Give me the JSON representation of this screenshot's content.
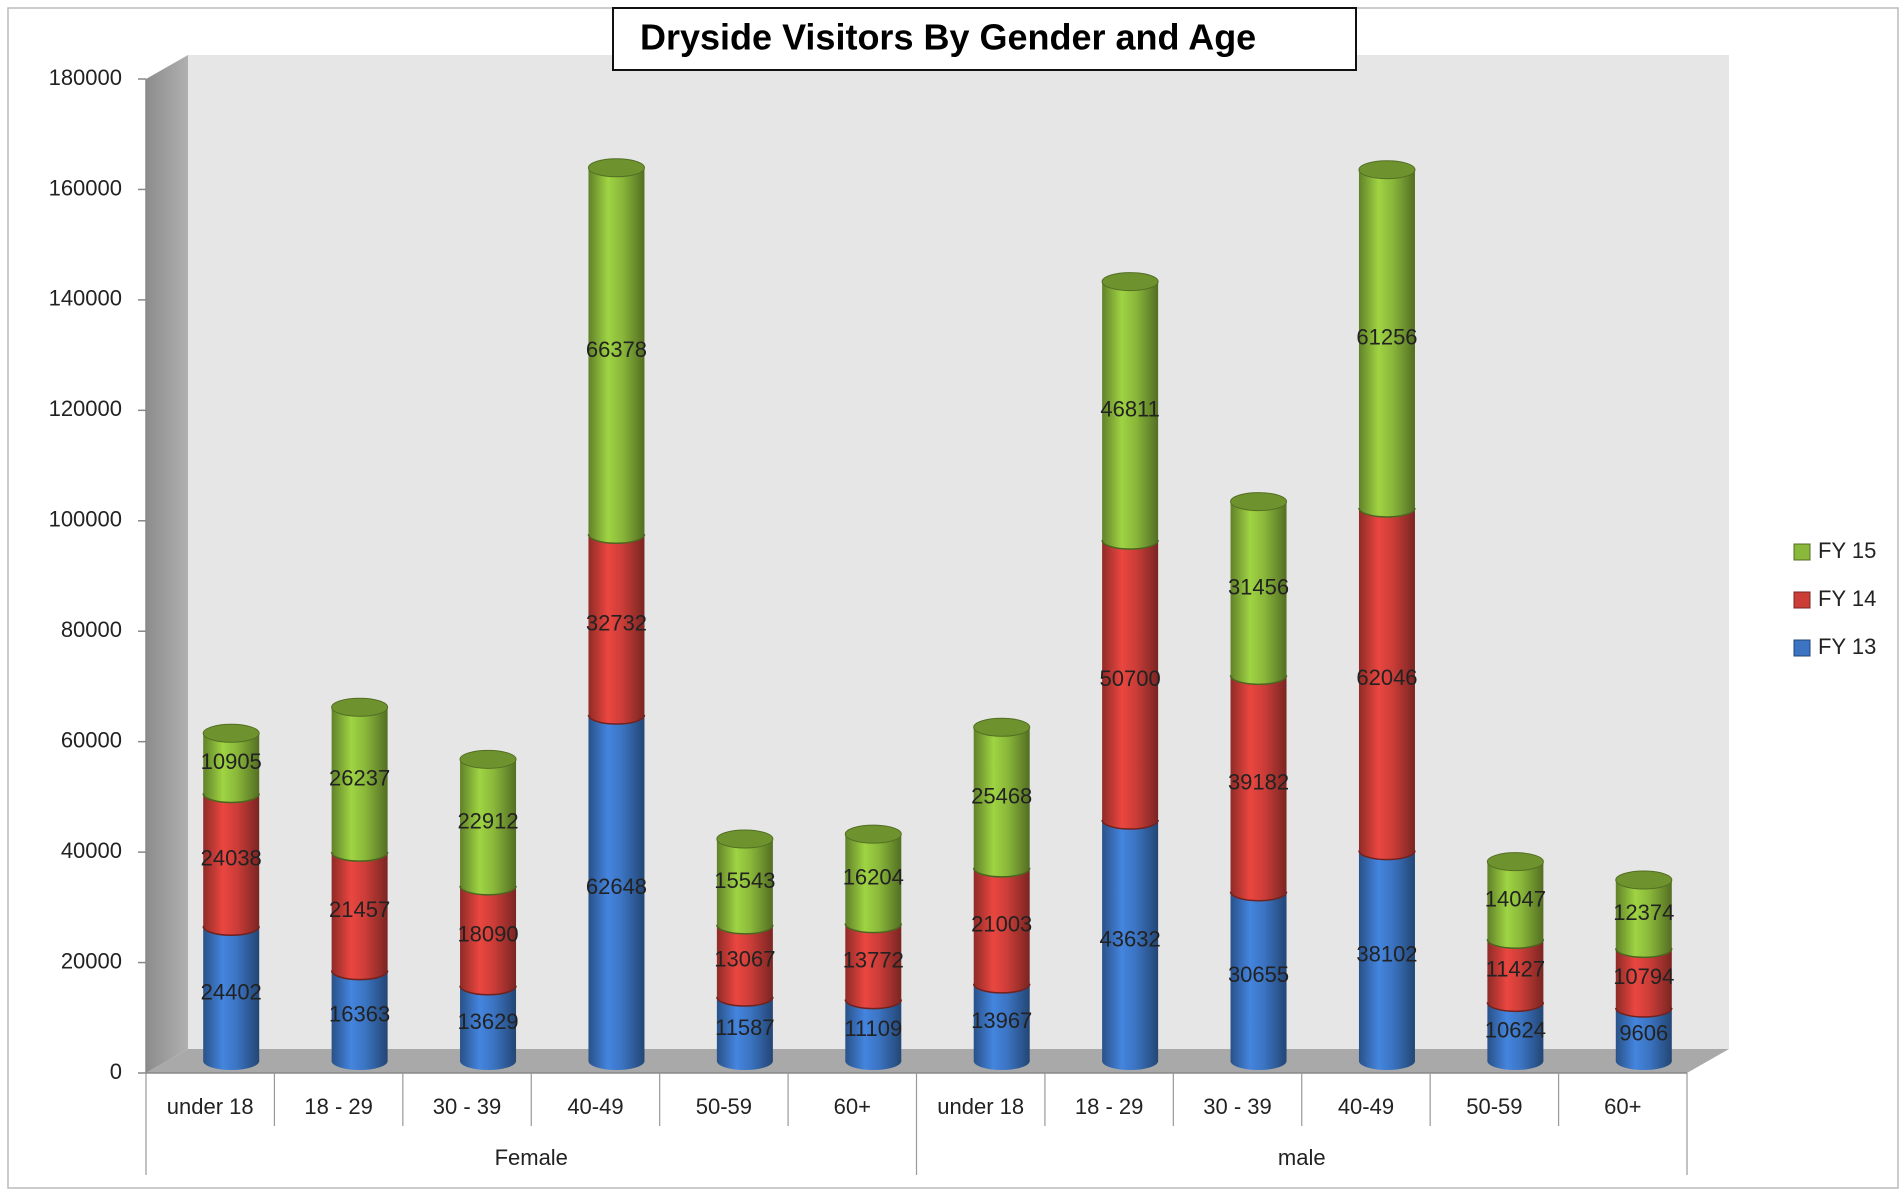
{
  "chart_data": {
    "type": "bar",
    "stacked": true,
    "title": "Dryside Visitors By Gender and Age",
    "categories": [
      "under 18",
      "18 - 29",
      "30 - 39",
      "40-49",
      "50-59",
      "60+",
      "under 18",
      "18 - 29",
      "30 - 39",
      "40-49",
      "50-59",
      "60+"
    ],
    "groups": [
      "Female",
      "male"
    ],
    "series": [
      {
        "name": "FY 13",
        "color": "#3b74c2",
        "values": [
          24402,
          16363,
          13629,
          62648,
          11587,
          11109,
          13967,
          43632,
          30655,
          38102,
          10624,
          9606
        ]
      },
      {
        "name": "FY 14",
        "color": "#cc3d38",
        "values": [
          24038,
          21457,
          18090,
          32732,
          13067,
          13772,
          21003,
          50700,
          39182,
          62046,
          11427,
          10794
        ]
      },
      {
        "name": "FY 15",
        "color": "#8ab83a",
        "values": [
          10905,
          26237,
          22912,
          66378,
          15543,
          16204,
          25468,
          46811,
          31456,
          61256,
          14047,
          12374
        ]
      }
    ],
    "ylim": [
      0,
      180000
    ],
    "yticks": [
      0,
      20000,
      40000,
      60000,
      80000,
      100000,
      120000,
      140000,
      160000,
      180000
    ],
    "legend": "right"
  }
}
